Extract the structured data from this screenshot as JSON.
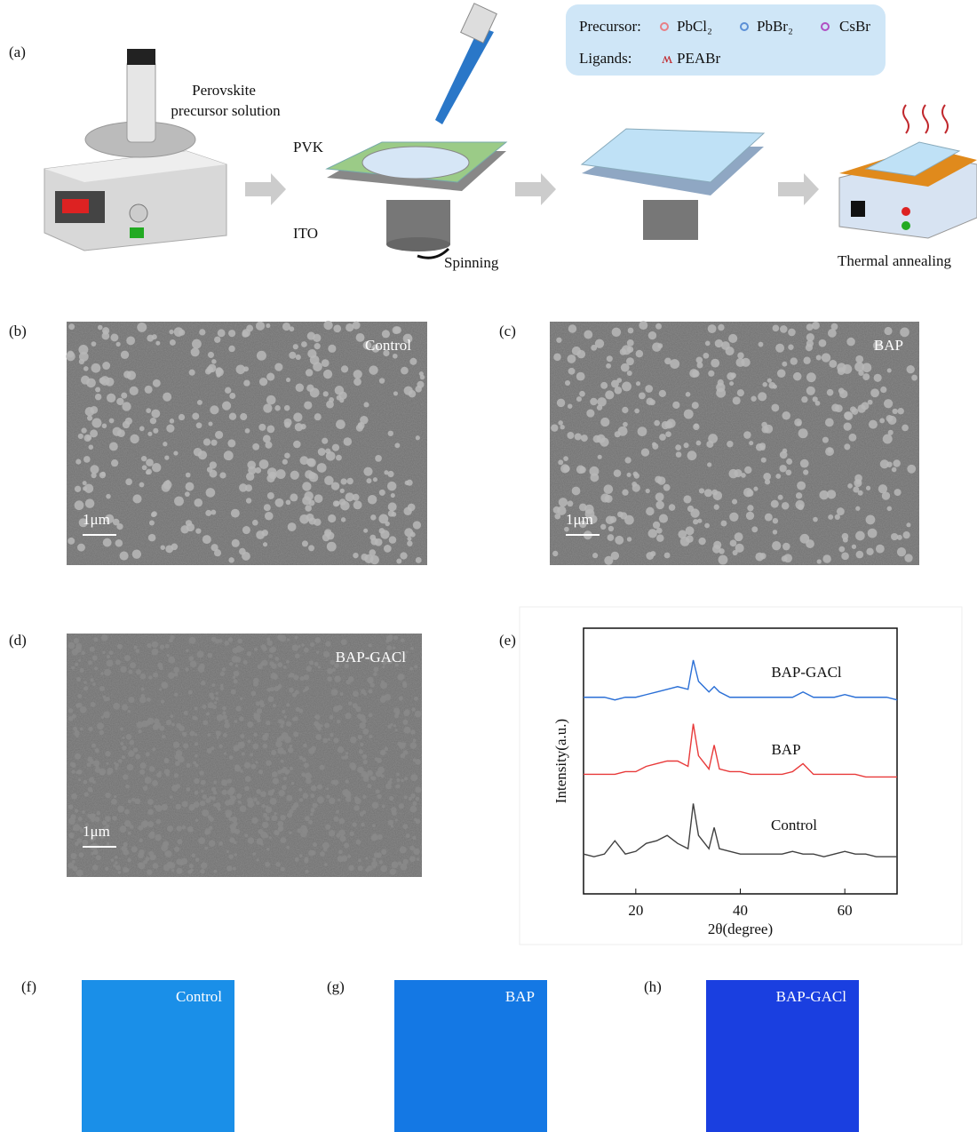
{
  "panels": [
    "(a)",
    "(b)",
    "(c)",
    "(d)",
    "(e)",
    "(f)",
    "(g)",
    "(h)"
  ],
  "schematic": {
    "precursor_label": "Precursor:",
    "precursors": [
      "PbCl₂",
      "PbBr₂",
      "CsBr"
    ],
    "ligands_label": "Ligands:",
    "ligand": "PEABr",
    "solution": [
      "Perovskite",
      "precursor solution"
    ],
    "pvk": "PVK",
    "ito": "ITO",
    "spinning": "Spinning",
    "annealing": "Thermal annealing"
  },
  "sem": [
    {
      "label": "Control",
      "scale": "1μm"
    },
    {
      "label": "BAP",
      "scale": "1μm"
    },
    {
      "label": "BAP-GACl",
      "scale": "1μm"
    }
  ],
  "photos": [
    {
      "label": "Control"
    },
    {
      "label": "BAP"
    },
    {
      "label": "BAP-GACl"
    }
  ],
  "chart_data": {
    "type": "line",
    "x_label": "2θ(degree)",
    "y_label": "Intensity(a.u.)",
    "x": [
      10,
      12,
      14,
      16,
      18,
      20,
      22,
      24,
      26,
      28,
      30,
      31,
      32,
      34,
      35,
      36,
      38,
      40,
      42,
      44,
      46,
      48,
      50,
      52,
      54,
      56,
      58,
      60,
      62,
      64,
      66,
      68,
      70
    ],
    "xlim": [
      10,
      70
    ],
    "xticks": [
      20,
      40,
      60
    ],
    "ylim": [
      0,
      100
    ],
    "series": [
      {
        "name": "BAP-GACl",
        "color": "#2a6fd6",
        "values": [
          74,
          74,
          74,
          73,
          74,
          74,
          75,
          76,
          77,
          78,
          77,
          88,
          80,
          76,
          78,
          76,
          74,
          74,
          74,
          74,
          74,
          74,
          74,
          76,
          74,
          74,
          74,
          75,
          74,
          74,
          74,
          74,
          73
        ]
      },
      {
        "name": "BAP",
        "color": "#e83a3a",
        "values": [
          45,
          45,
          45,
          45,
          46,
          46,
          48,
          49,
          50,
          50,
          48,
          64,
          52,
          47,
          56,
          47,
          46,
          46,
          45,
          45,
          45,
          45,
          46,
          49,
          45,
          45,
          45,
          45,
          45,
          44,
          44,
          44,
          44
        ]
      },
      {
        "name": "Control",
        "color": "#404040",
        "values": [
          15,
          14,
          15,
          20,
          15,
          16,
          19,
          20,
          22,
          19,
          17,
          34,
          22,
          17,
          25,
          17,
          16,
          15,
          15,
          15,
          15,
          15,
          16,
          15,
          15,
          14,
          15,
          16,
          15,
          15,
          14,
          14,
          14
        ]
      }
    ]
  }
}
